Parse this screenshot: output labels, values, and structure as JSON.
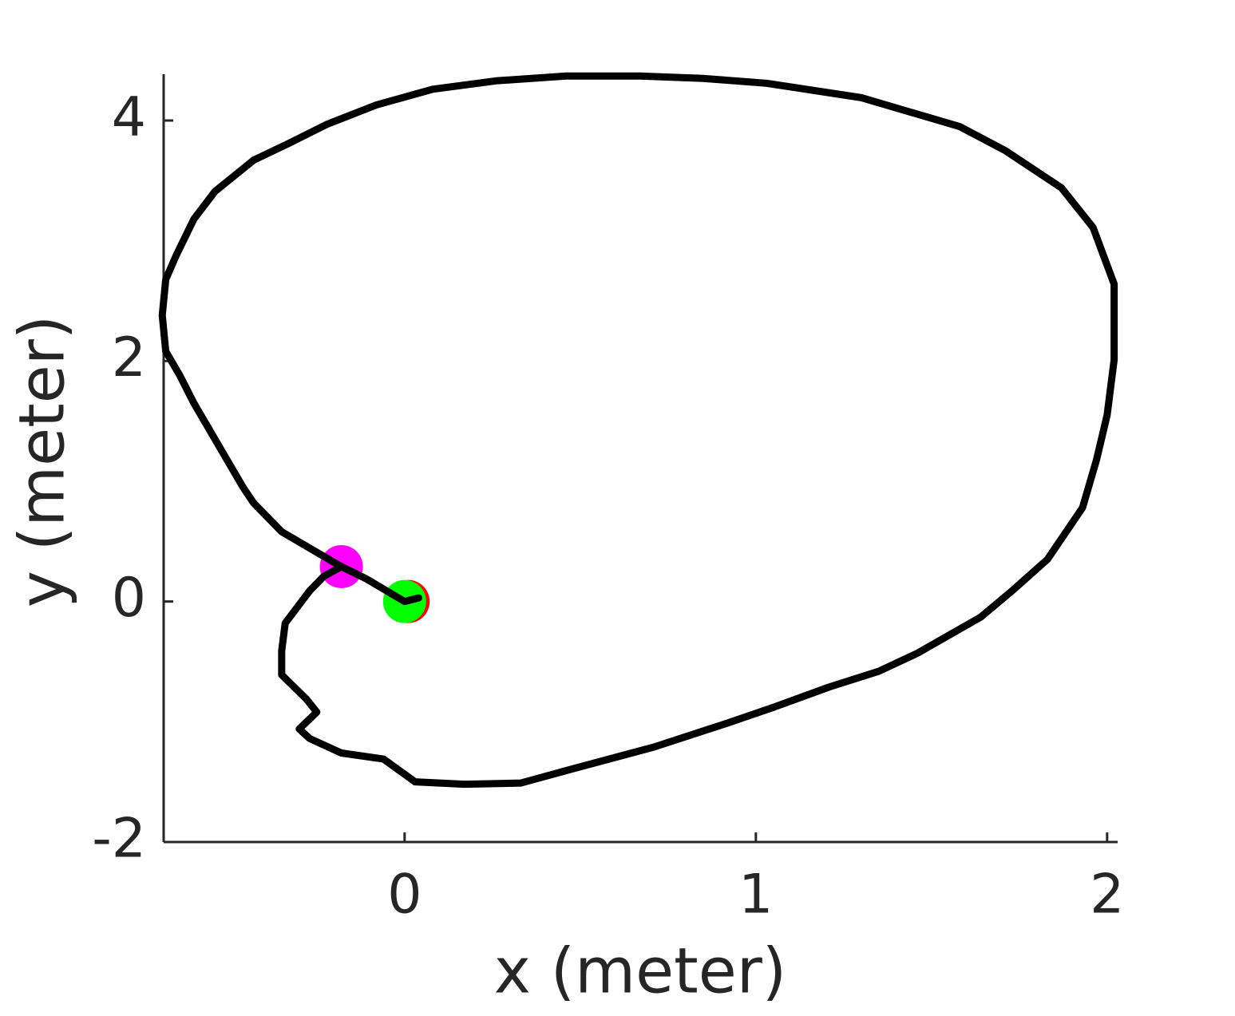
{
  "chart_data": {
    "type": "line",
    "xlabel": "x (meter)",
    "ylabel": "y (meter)",
    "xlim": [
      -0.686,
      2.03
    ],
    "ylim": [
      -2,
      4.385
    ],
    "xticks": [
      0,
      1,
      2
    ],
    "yticks": [
      -2,
      0,
      2,
      4
    ],
    "series": [
      {
        "color": "#ff0000",
        "marker": true,
        "x": [
          0.01
        ],
        "values": [
          0
        ]
      },
      {
        "color": "#00ff00",
        "marker": true,
        "x": [
          0
        ],
        "values": [
          0
        ]
      },
      {
        "color": "#ff00ff",
        "marker": true,
        "x": [
          -0.18
        ],
        "values": [
          0.29
        ]
      },
      {
        "color": "#000000",
        "marker": false,
        "x": [
          0.04,
          0,
          -0.11,
          -0.18,
          -0.35,
          -0.43,
          -0.46,
          -0.5,
          -0.54,
          -0.6,
          -0.64,
          -0.68,
          -0.69,
          -0.68,
          -0.65,
          -0.6,
          -0.54,
          -0.43,
          -0.33,
          -0.22,
          -0.08,
          0.08,
          0.26,
          0.46,
          0.67,
          0.85,
          1.03,
          1.3,
          1.58,
          1.71,
          1.87,
          1.96,
          2.02,
          2.02,
          2.0,
          1.97,
          1.93,
          1.83,
          1.73,
          1.64,
          1.46,
          1.35,
          1.21,
          1.05,
          0.92,
          0.71,
          0.48,
          0.33,
          0.17,
          0.03,
          -0.06,
          -0.18,
          -0.27,
          -0.3,
          -0.25,
          -0.28,
          -0.35,
          -0.35,
          -0.34,
          -0.27,
          -0.23,
          -0.18
        ],
        "values": [
          0.03,
          0,
          0.19,
          0.29,
          0.58,
          0.82,
          0.95,
          1.15,
          1.35,
          1.65,
          1.88,
          2.08,
          2.38,
          2.68,
          2.88,
          3.18,
          3.41,
          3.67,
          3.81,
          3.97,
          4.13,
          4.26,
          4.33,
          4.37,
          4.37,
          4.35,
          4.31,
          4.19,
          3.95,
          3.75,
          3.44,
          3.11,
          2.64,
          2.01,
          1.55,
          1.18,
          0.78,
          0.35,
          0.09,
          -0.13,
          -0.43,
          -0.58,
          -0.71,
          -0.88,
          -1.01,
          -1.21,
          -1.39,
          -1.51,
          -1.52,
          -1.5,
          -1.31,
          -1.26,
          -1.14,
          -1.06,
          -0.92,
          -0.81,
          -0.61,
          -0.41,
          -0.18,
          0.09,
          0.21,
          0.29
        ]
      }
    ]
  }
}
